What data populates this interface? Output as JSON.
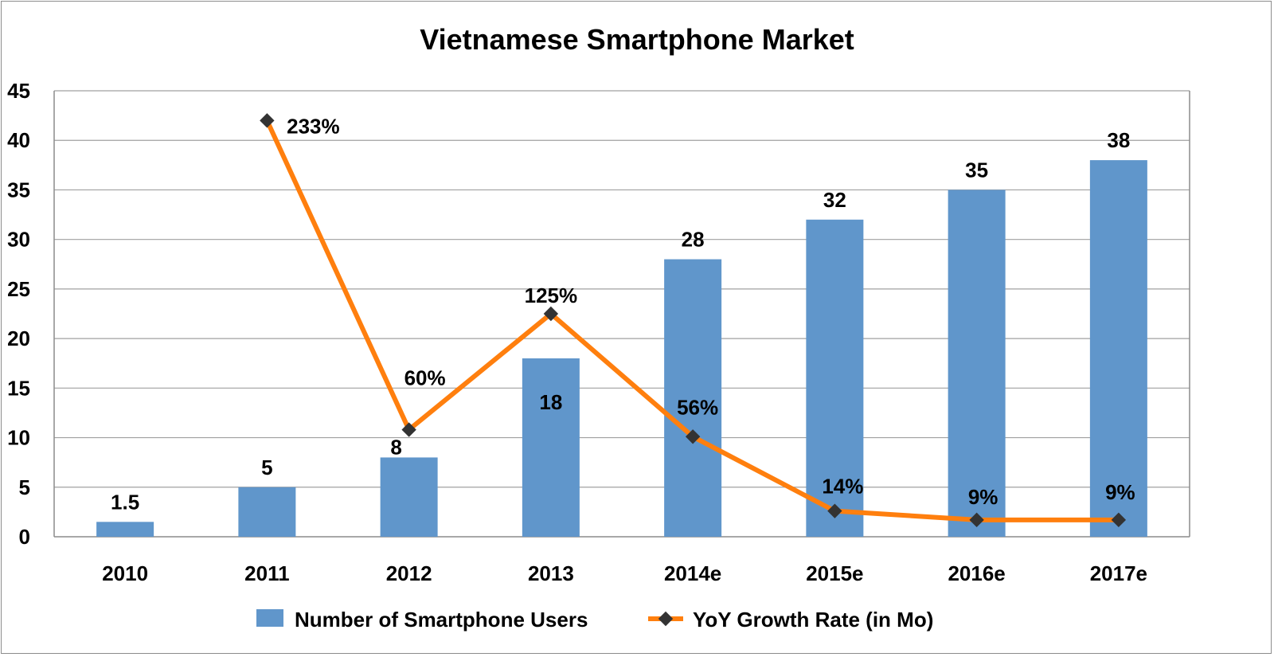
{
  "chart_data": {
    "type": "bar",
    "title": "Vietnamese Smartphone Market",
    "categories": [
      "2010",
      "2011",
      "2012",
      "2013",
      "2014e",
      "2015e",
      "2016e",
      "2017e"
    ],
    "ylim": [
      0,
      45
    ],
    "yticks": [
      0,
      5,
      10,
      15,
      20,
      25,
      30,
      35,
      40,
      45
    ],
    "grid": true,
    "legend_position": "bottom",
    "series": [
      {
        "name": "Number of Smartphone Users",
        "type": "bar",
        "color": "#6096CB",
        "values": [
          1.5,
          5,
          8,
          18,
          28,
          32,
          35,
          38
        ],
        "labels": [
          "1.5",
          "5",
          "8",
          "18",
          "28",
          "32",
          "35",
          "38"
        ]
      },
      {
        "name": "YoY Growth Rate (in Mo)",
        "type": "line",
        "color": "#FF7F0E",
        "marker_color": "#333333",
        "values": [
          null,
          42,
          10.8,
          22.5,
          10.1,
          2.6,
          1.7,
          1.7
        ],
        "labels": [
          null,
          "233%",
          "60%",
          "125%",
          "56%",
          "14%",
          "9%",
          "9%"
        ]
      }
    ]
  }
}
